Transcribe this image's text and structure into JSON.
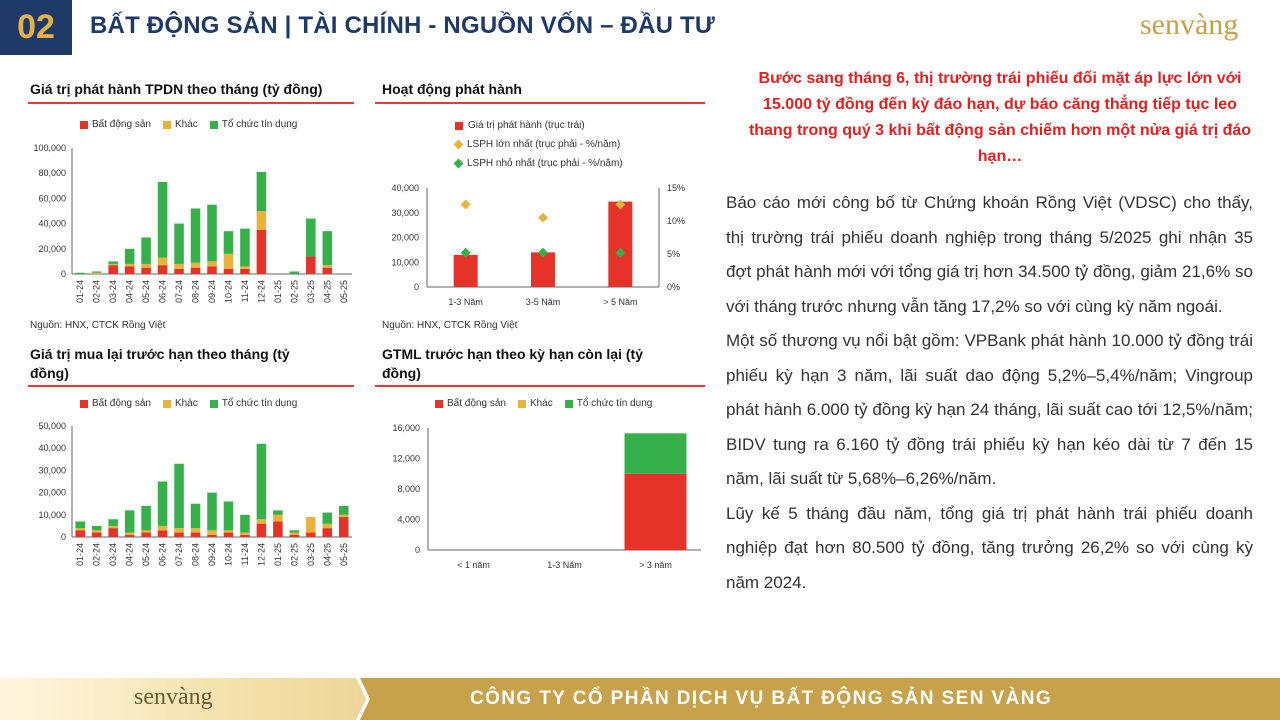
{
  "header": {
    "section_no": "02",
    "title": "BẤT ĐỘNG SẢN | TÀI CHÍNH - NGUỒN VỐN – ĐẦU TƯ",
    "logo": "senvàng"
  },
  "colors": {
    "bds": "#e5332a",
    "khac": "#e8b33c",
    "tctd": "#35b04a",
    "accent": "#1f3a68",
    "gold": "#c8a14b"
  },
  "legend": {
    "bds": "Bất động sản",
    "khac": "Khác",
    "tctd": "Tổ chức tín dụng"
  },
  "panel1": {
    "title": "Giá trị phát hành TPDN theo tháng (tỷ đồng)",
    "source": "Nguồn: HNX, CTCK Rồng Việt"
  },
  "panel2": {
    "title": "Hoạt động phát hành",
    "legend": [
      "Giá trị phát hành (trục trái)",
      "LSPH lớn nhất (trục phải - %/năm)",
      "LSPH nhỏ nhất (trục phải - %/năm)"
    ],
    "source": "Nguồn: HNX, CTCK Rồng Việt"
  },
  "panel3": {
    "title_line1": "Giá trị mua lại trước hạn theo tháng (tỷ",
    "title_line2": "đồng)"
  },
  "panel4": {
    "title_line1": "GTML trước hạn theo kỳ hạn còn lại (tỷ",
    "title_line2": "đồng)"
  },
  "chart_data": [
    {
      "type": "bar",
      "title": "Giá trị phát hành TPDN theo tháng (tỷ đồng)",
      "stacked": true,
      "categories": [
        "01-24",
        "02-24",
        "03-24",
        "04-24",
        "05-24",
        "06-24",
        "07-24",
        "08-24",
        "09-24",
        "10-24",
        "11-24",
        "12-24",
        "01-25",
        "02-25",
        "03-25",
        "04-25",
        "05-25"
      ],
      "series": [
        {
          "name": "Bất động sản",
          "values": [
            0,
            0,
            7000,
            6000,
            5000,
            7000,
            4000,
            5000,
            6000,
            4000,
            4000,
            35000,
            0,
            0,
            14000,
            5000,
            0
          ]
        },
        {
          "name": "Khác",
          "values": [
            0,
            1000,
            1000,
            2000,
            3000,
            6000,
            4000,
            4000,
            4000,
            12000,
            2000,
            15000,
            0,
            0,
            0,
            2000,
            0
          ]
        },
        {
          "name": "Tổ chức tín dụng",
          "values": [
            1000,
            1000,
            2000,
            12000,
            21000,
            60000,
            32000,
            43000,
            45000,
            18000,
            30000,
            31000,
            0,
            2000,
            30000,
            27000,
            0
          ]
        }
      ],
      "ylim": [
        0,
        100000
      ],
      "yticks": [
        "0",
        "20,000",
        "40,000",
        "60,000",
        "80,000",
        "100,000"
      ]
    },
    {
      "type": "bar",
      "title": "Hoạt động phát hành",
      "categories": [
        "1-3 Năm",
        "3-5 Năm",
        "> 5 Năm"
      ],
      "series": [
        {
          "name": "Giá trị phát hành (trục trái)",
          "values": [
            13000,
            14000,
            34500
          ]
        },
        {
          "name": "LSPH lớn nhất (trục phải - %/năm)",
          "values": [
            12.5,
            10.5,
            12.5
          ]
        },
        {
          "name": "LSPH nhỏ nhất (trục phải - %/năm)",
          "values": [
            5.2,
            5.2,
            5.2
          ]
        }
      ],
      "ylim": [
        0,
        40000
      ],
      "y2lim": [
        0,
        15
      ],
      "yticks": [
        "0",
        "10,000",
        "20,000",
        "30,000",
        "40,000"
      ],
      "y2ticks": [
        "0%",
        "5%",
        "10%",
        "15%"
      ]
    },
    {
      "type": "bar",
      "title": "Giá trị mua lại trước hạn theo tháng (tỷ đồng)",
      "stacked": true,
      "categories": [
        "01-24",
        "02-24",
        "03-24",
        "04-24",
        "05-24",
        "06-24",
        "07-24",
        "08-24",
        "09-24",
        "10-24",
        "11-24",
        "12-24",
        "01-25",
        "02-25",
        "03-25",
        "04-25",
        "05-25"
      ],
      "series": [
        {
          "name": "Bất động sản",
          "values": [
            3000,
            2000,
            4000,
            1000,
            2000,
            3000,
            2000,
            2000,
            1000,
            2000,
            1000,
            6000,
            7000,
            1000,
            2000,
            4000,
            9000
          ]
        },
        {
          "name": "Khác",
          "values": [
            1000,
            1000,
            1000,
            1000,
            1000,
            2000,
            2000,
            2000,
            2000,
            1000,
            1000,
            2000,
            3000,
            1000,
            7000,
            2000,
            1000
          ]
        },
        {
          "name": "Tổ chức tín dụng",
          "values": [
            3000,
            2000,
            3000,
            10000,
            11000,
            20000,
            29000,
            11000,
            17000,
            13000,
            8000,
            34000,
            2000,
            1000,
            0,
            5000,
            4000
          ]
        }
      ],
      "ylim": [
        0,
        50000
      ],
      "yticks": [
        "0",
        "10,000",
        "20,000",
        "30,000",
        "40,000",
        "50,000"
      ]
    },
    {
      "type": "bar",
      "title": "GTML trước hạn theo kỳ hạn còn lại (tỷ đồng)",
      "stacked": true,
      "categories": [
        "< 1 năm",
        "1-3 Năm",
        "> 3 năm"
      ],
      "series": [
        {
          "name": "Bất động sản",
          "values": [
            0,
            0,
            10000
          ]
        },
        {
          "name": "Khác",
          "values": [
            0,
            0,
            0
          ]
        },
        {
          "name": "Tổ chức tín dụng",
          "values": [
            0,
            0,
            5300
          ]
        }
      ],
      "ylim": [
        0,
        16000
      ],
      "yticks": [
        "0",
        "4,000",
        "8,000",
        "12,000",
        "16,000"
      ]
    }
  ],
  "lead": "Bước sang tháng 6, thị trường trái phiếu đối mặt áp lực lớn với 15.000 tỷ đồng đến kỳ đáo hạn, dự báo căng thẳng tiếp tục leo thang trong quý 3 khi bất động sản chiếm hơn một nửa giá trị đáo hạn…",
  "paragraphs": [
    "Báo cáo mới công bố từ Chứng khoán Rồng Việt (VDSC) cho thấy, thị trường trái phiếu doanh nghiệp trong tháng 5/2025 ghi nhận 35 đợt phát hành mới với tổng giá trị hơn 34.500 tỷ đồng, giảm 21,6% so với tháng trước nhưng vẫn tăng 17,2% so với cùng kỳ năm ngoái.",
    "Một số thương vụ nổi bật gồm: VPBank phát hành 10.000 tỷ đồng trái phiếu kỳ hạn 3 năm, lãi suất dao động 5,2%–5,4%/năm; Vingroup phát hành 6.000 tỷ đồng kỳ hạn 24 tháng, lãi suất cao tới 12,5%/năm; BIDV tung ra 6.160 tỷ đồng trái phiếu kỳ hạn kéo dài từ 7 đến 15 năm, lãi suất từ 5,68%–6,26%/năm.",
    "Lũy kế 5 tháng đầu năm, tổng giá trị phát hành trái phiếu doanh nghiệp đạt hơn 80.500 tỷ đồng, tăng trưởng 26,2% so với cùng kỳ năm 2024."
  ],
  "footer": {
    "logo": "senvàng",
    "company": "CÔNG TY CỔ PHẦN DỊCH VỤ BẤT ĐỘNG SẢN SEN VÀNG"
  }
}
